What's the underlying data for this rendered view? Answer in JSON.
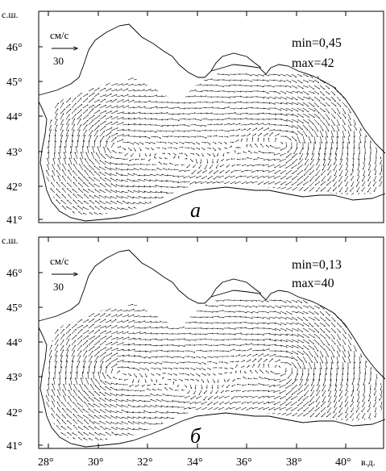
{
  "panels": [
    {
      "id": "a",
      "panel_label": "а",
      "lat_unit": "с.ш.",
      "scale_unit": "см/с",
      "scale_value": "30",
      "min_text": "min=0,45",
      "max_text": "max=42",
      "lat_ticks": [
        "46°",
        "45°",
        "44°",
        "43°",
        "42°",
        "41°"
      ]
    },
    {
      "id": "b",
      "panel_label": "б",
      "lat_unit": "с.ш.",
      "scale_unit": "см/с",
      "scale_value": "30",
      "min_text": "min=0,13",
      "max_text": "max=40",
      "lat_ticks": [
        "46°",
        "45°",
        "44°",
        "43°",
        "42°",
        "41°"
      ]
    }
  ],
  "lon_ticks": [
    "28°",
    "30°",
    "32°",
    "34°",
    "36°",
    "38°",
    "40°"
  ],
  "lon_unit": "в.д.",
  "colors": {
    "ink": "#000000",
    "background": "#ffffff"
  }
}
